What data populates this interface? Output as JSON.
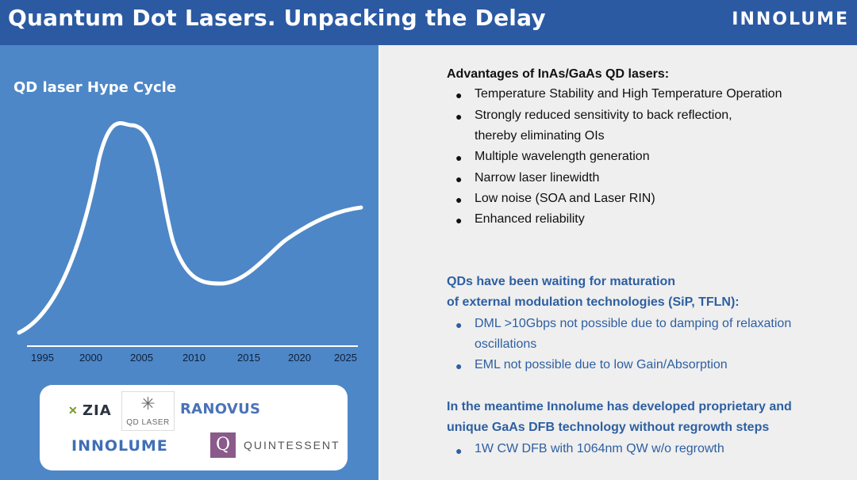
{
  "header": {
    "title": "Quantum Dot Lasers. Unpacking the Delay",
    "brand": "INNOLUME"
  },
  "hype_cycle": {
    "title": "QD laser Hype Cycle",
    "years": [
      "1995",
      "2000",
      "2005",
      "2010",
      "2015",
      "2020",
      "2025"
    ]
  },
  "logos": {
    "zia": "ZIA",
    "qd_laser": "QD LASER",
    "ranovus": "RANOVUS",
    "innolume": "INNOLUME",
    "quintessent_mark": "Q",
    "quintessent": "QUINTESSENT"
  },
  "advantages": {
    "heading": "Advantages of InAs/GaAs QD lasers:",
    "items": [
      "Temperature Stability and High Temperature Operation",
      "Strongly reduced sensitivity to back reflection,",
      "thereby eliminating OIs",
      "Multiple wavelength generation",
      "Narrow laser linewidth",
      "Low noise (SOA and Laser RIN)",
      "Enhanced reliability"
    ]
  },
  "modulation": {
    "heading_line1": "QDs have been waiting for maturation",
    "heading_line2": "of external modulation technologies (SiP, TFLN):",
    "items": [
      "DML >10Gbps not possible due to damping of relaxation",
      "oscillations",
      "EML not possible due to low Gain/Absorption"
    ]
  },
  "meantime": {
    "heading_line1": "In the meantime Innolume has developed proprietary and",
    "heading_line2": "unique GaAs DFB technology without regrowth steps",
    "items": [
      "1W CW DFB with 1064nm QW w/o regrowth"
    ]
  },
  "bullet_glyph": "●",
  "colors": {
    "header_bg": "#2b5aa3",
    "left_bg": "#4d87c7",
    "right_bg": "#efefef",
    "accent_blue": "#2d5fa1"
  }
}
